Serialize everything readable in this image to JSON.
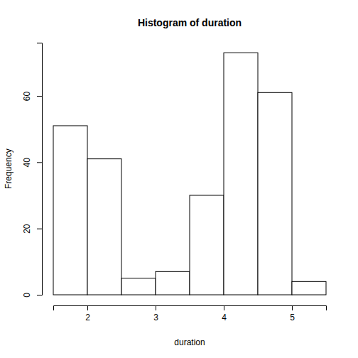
{
  "chart_data": {
    "type": "histogram",
    "title": "Histogram of duration",
    "x_label": "duration",
    "y_label": "Frequency",
    "bins": [
      1.5,
      2,
      2.5,
      3,
      3.5,
      4,
      4.5,
      5,
      5.5
    ],
    "values": [
      51,
      41,
      5,
      7,
      30,
      73,
      61,
      4
    ],
    "color": "#ffffff",
    "xlim": [
      1.5,
      5.5
    ],
    "xticks": [
      2,
      3,
      4,
      5
    ],
    "ylim": [
      0,
      76
    ],
    "yticks": [
      0,
      20,
      40,
      60
    ],
    "grid": false
  }
}
